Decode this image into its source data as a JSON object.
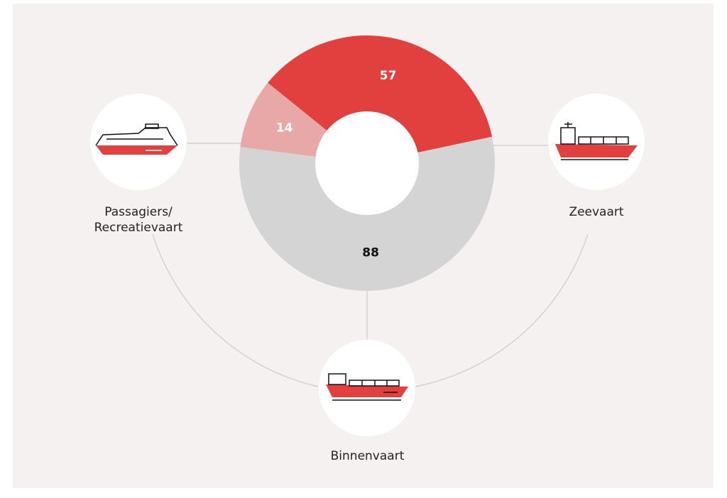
{
  "chart_data": {
    "type": "donut",
    "categories": [
      "Zeevaart",
      "Binnenvaart",
      "Passagiers/ Recreatievaart"
    ],
    "values": [
      57,
      88,
      14
    ],
    "colors": [
      "#e23f3f",
      "#d4d4d4",
      "#e8a8a8"
    ],
    "label_colors": [
      "#ffffff",
      "#111111",
      "#ffffff"
    ]
  }
}
